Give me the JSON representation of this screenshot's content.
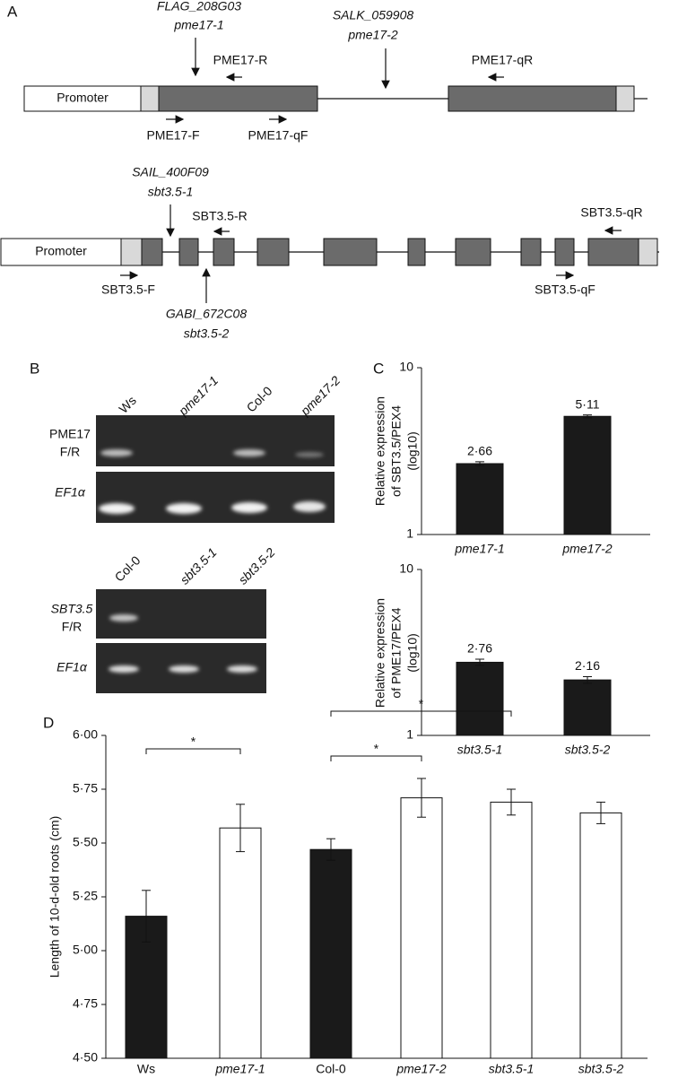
{
  "panel_labels": [
    "A",
    "B",
    "C",
    "D"
  ],
  "gene_diagrams": [
    {
      "promoter": "Promoter",
      "insertions": [
        {
          "line": "FLAG_208G03",
          "allele": "pme17-1"
        },
        {
          "line": "SALK_059908",
          "allele": "pme17-2"
        }
      ],
      "primers": [
        "PME17-R",
        "PME17-qR",
        "PME17-F",
        "PME17-qF"
      ]
    },
    {
      "promoter": "Promoter",
      "insertions": [
        {
          "line": "SAIL_400F09",
          "allele": "sbt3.5-1"
        },
        {
          "line": "GABI_672C08",
          "allele": "sbt3.5-2"
        }
      ],
      "primers": [
        "SBT3.5-R",
        "SBT3.5-qR",
        "SBT3.5-F",
        "SBT3.5-qF"
      ]
    }
  ],
  "gels": [
    {
      "lanes": [
        "Ws",
        "pme17-1",
        "Col-0",
        "pme17-2"
      ],
      "rows": [
        [
          "PME17",
          "F/R"
        ],
        [
          "EF1α"
        ]
      ]
    },
    {
      "lanes": [
        "Col-0",
        "sbt3.5-1",
        "sbt3.5-2"
      ],
      "rows": [
        [
          "SBT3.5",
          "F/R"
        ],
        [
          "EF1α"
        ]
      ]
    }
  ],
  "chart_data": [
    {
      "type": "bar",
      "ylabel": [
        "Relative expression",
        "of SBT3.5/PEX4",
        "(log10)"
      ],
      "categories": [
        "pme17-1",
        "pme17-2"
      ],
      "values": [
        2.66,
        5.11
      ],
      "value_labels": [
        "2·66",
        "5·11"
      ],
      "errors": [
        0.07,
        0.1
      ],
      "color": "#1a1a1a",
      "log_scale": true,
      "ylim": [
        1,
        10
      ],
      "yticks": [
        1,
        10
      ]
    },
    {
      "type": "bar",
      "ylabel": [
        "Relative expression",
        "of PME17/PEX4",
        "(log10)"
      ],
      "categories": [
        "sbt3.5-1",
        "sbt3.5-2"
      ],
      "values": [
        2.76,
        2.16
      ],
      "value_labels": [
        "2·76",
        "2·16"
      ],
      "errors": [
        0.12,
        0.1
      ],
      "color": "#1a1a1a",
      "log_scale": true,
      "ylim": [
        1,
        10
      ],
      "yticks": [
        1,
        10
      ]
    },
    {
      "type": "bar",
      "ylabel": "Length of 10-d-old roots (cm)",
      "categories": [
        "Ws",
        "pme17-1",
        "Col-0",
        "pme17-2",
        "sbt3.5-1",
        "sbt3.5-2"
      ],
      "values": [
        5.16,
        5.57,
        5.47,
        5.71,
        5.69,
        5.64
      ],
      "errors": [
        0.12,
        0.11,
        0.05,
        0.09,
        0.06,
        0.05
      ],
      "colors": [
        "#1a1a1a",
        "#ffffff",
        "#1a1a1a",
        "#ffffff",
        "#ffffff",
        "#ffffff"
      ],
      "ylim": [
        4.5,
        6.0
      ],
      "yticks": [
        {
          "value": 4.5,
          "label": "4·50"
        },
        {
          "value": 4.75,
          "label": "4·75"
        },
        {
          "value": 5.0,
          "label": "5·00"
        },
        {
          "value": 5.25,
          "label": "5·25"
        },
        {
          "value": 5.5,
          "label": "5·50"
        },
        {
          "value": 5.75,
          "label": "5·75"
        },
        {
          "value": 6.0,
          "label": "6·00"
        }
      ],
      "annotations": [
        "*",
        "*",
        "*"
      ]
    }
  ]
}
